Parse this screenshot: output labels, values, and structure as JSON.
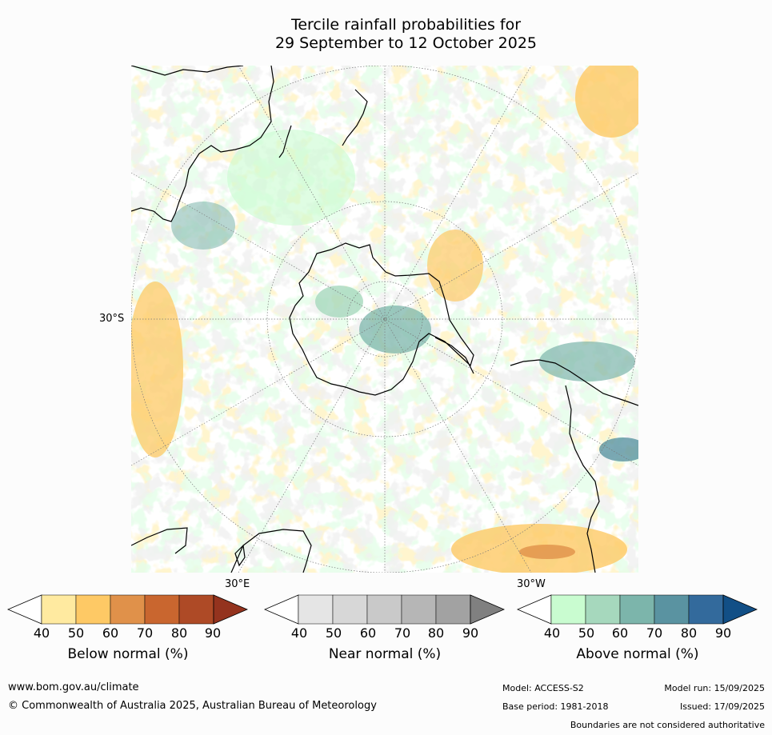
{
  "title": {
    "line1": "Tercile rainfall probabilities for",
    "line2": "29 September to 12 October 2025"
  },
  "map": {
    "projection": "south-polar-stereographic",
    "lat_label_30S": "30°S",
    "lon_label_30E": "30°E",
    "lon_label_30W": "30°W"
  },
  "colorbars": {
    "below": {
      "title": "Below normal (%)",
      "ticks": [
        "40",
        "50",
        "60",
        "70",
        "80",
        "90"
      ],
      "colors": [
        "#ffffff",
        "#ffeaa0",
        "#fec965",
        "#e0914a",
        "#c9662f",
        "#ae4a26",
        "#94331e"
      ]
    },
    "near": {
      "title": "Near normal (%)",
      "ticks": [
        "40",
        "50",
        "60",
        "70",
        "80",
        "90"
      ],
      "colors": [
        "#ffffff",
        "#e5e5e5",
        "#d7d7d7",
        "#c9c9c9",
        "#b6b6b6",
        "#a2a2a2",
        "#808080"
      ]
    },
    "above": {
      "title": "Above normal (%)",
      "ticks": [
        "40",
        "50",
        "60",
        "70",
        "80",
        "90"
      ],
      "colors": [
        "#ffffff",
        "#c9fcd0",
        "#a6d8bd",
        "#7cb5ab",
        "#5a93a1",
        "#336a9c",
        "#124f86"
      ]
    }
  },
  "footer": {
    "url": "www.bom.gov.au/climate",
    "copyright": "© Commonwealth of Australia 2025, Australian Bureau of Meteorology",
    "model": "Model: ACCESS-S2",
    "model_run": "Model run: 15/09/2025",
    "base_period": "Base period: 1981-2018",
    "issued": "Issued: 17/09/2025",
    "boundaries": "Boundaries are not considered authoritative"
  }
}
